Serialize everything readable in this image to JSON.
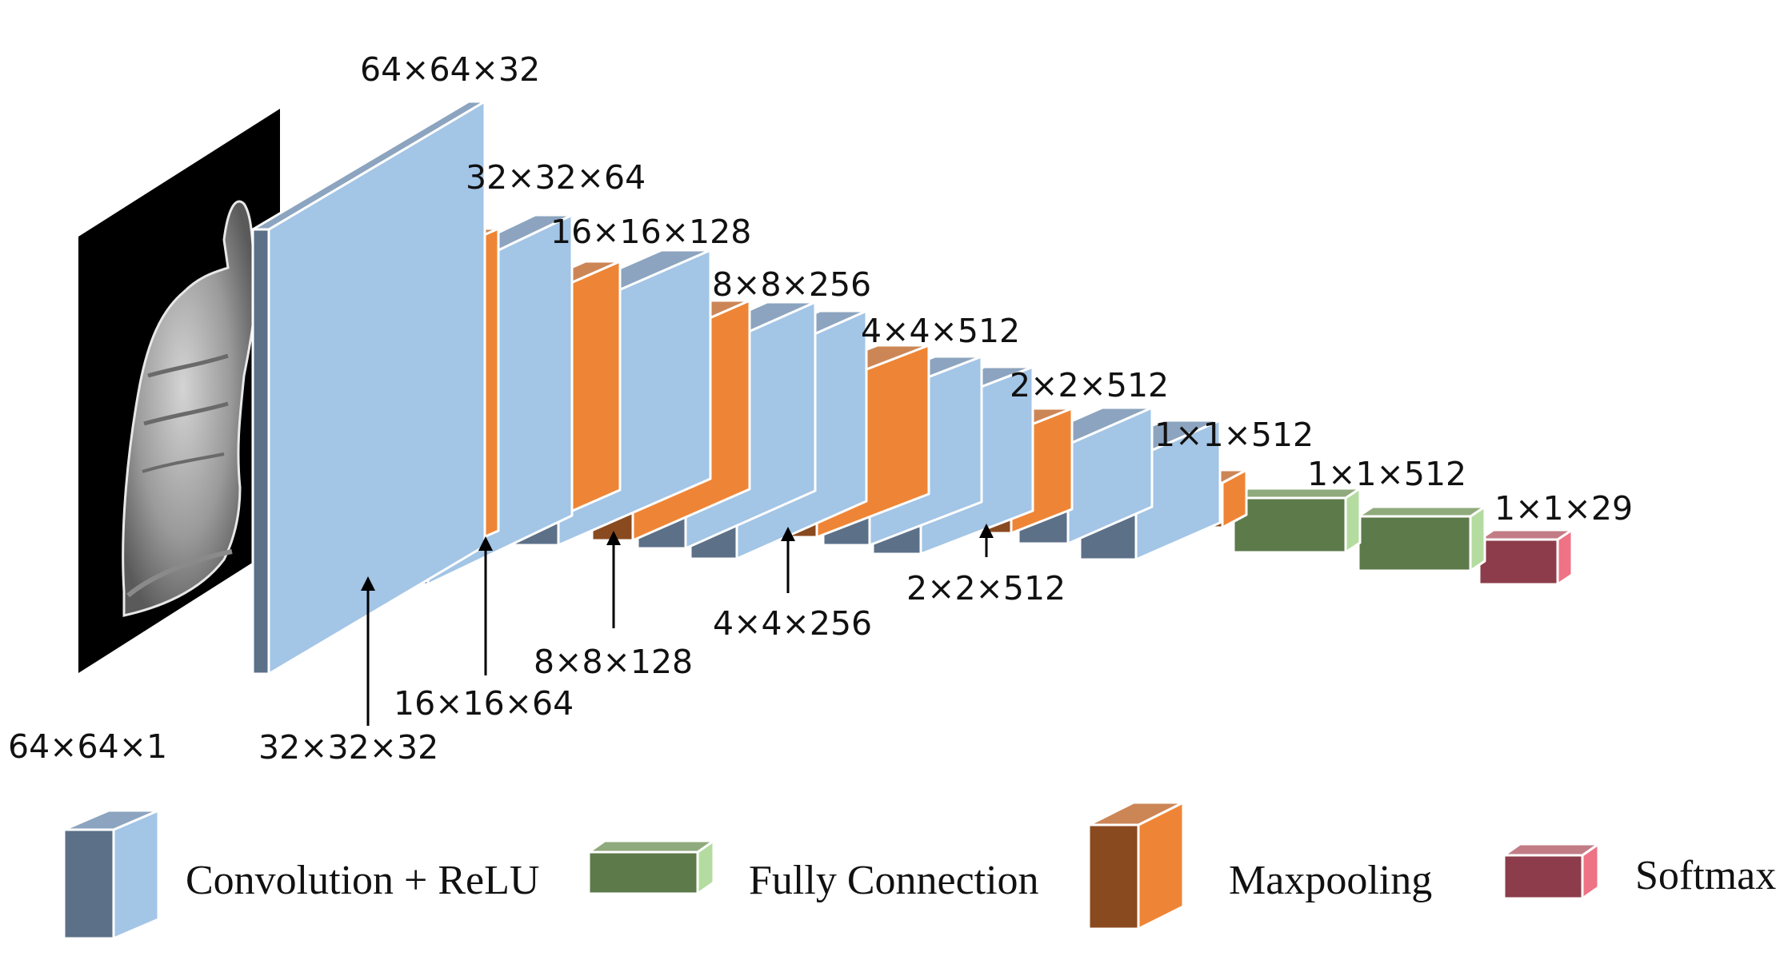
{
  "input_label": "64×64×1",
  "input_image": "hand-gesture-photo",
  "layers": [
    {
      "id": "conv1",
      "type": "conv",
      "label": "64×64×32"
    },
    {
      "id": "pool1",
      "type": "pool",
      "label": "32×32×32"
    },
    {
      "id": "conv2",
      "type": "conv",
      "label": "32×32×64"
    },
    {
      "id": "pool2",
      "type": "pool",
      "label": "16×16×64"
    },
    {
      "id": "conv3",
      "type": "conv",
      "label": "16×16×128"
    },
    {
      "id": "pool3",
      "type": "pool",
      "label": "8×8×128"
    },
    {
      "id": "conv4",
      "type": "conv",
      "label": "8×8×256"
    },
    {
      "id": "pool4",
      "type": "pool",
      "label": "4×4×256"
    },
    {
      "id": "conv5",
      "type": "conv",
      "label": "4×4×512"
    },
    {
      "id": "pool5",
      "type": "pool",
      "label": "2×2×512"
    },
    {
      "id": "conv6",
      "type": "conv",
      "label": "2×2×512"
    },
    {
      "id": "pool6",
      "type": "pool",
      "label": "1×1×512"
    },
    {
      "id": "fc",
      "type": "fc",
      "label": "1×1×512"
    },
    {
      "id": "softmax",
      "type": "softmax",
      "label": "1×1×29"
    }
  ],
  "legend": [
    {
      "type": "conv",
      "label": "Convolution + ReLU"
    },
    {
      "type": "fc",
      "label": "Fully Connection"
    },
    {
      "type": "pool",
      "label": "Maxpooling"
    },
    {
      "type": "softmax",
      "label": "Softmax"
    }
  ],
  "colors": {
    "conv": {
      "front": "#5c7088",
      "side": "#a3c5e6",
      "top": "#8ca4bf"
    },
    "pool": {
      "front": "#8a4a1f",
      "side": "#ee8536",
      "top": "#cc8656"
    },
    "fc": {
      "front": "#5c7a4a",
      "side": "#b4dca0",
      "top": "#8faa7c"
    },
    "softmax": {
      "front": "#8c3c4a",
      "side": "#ee7384",
      "top": "#c27c86"
    }
  }
}
